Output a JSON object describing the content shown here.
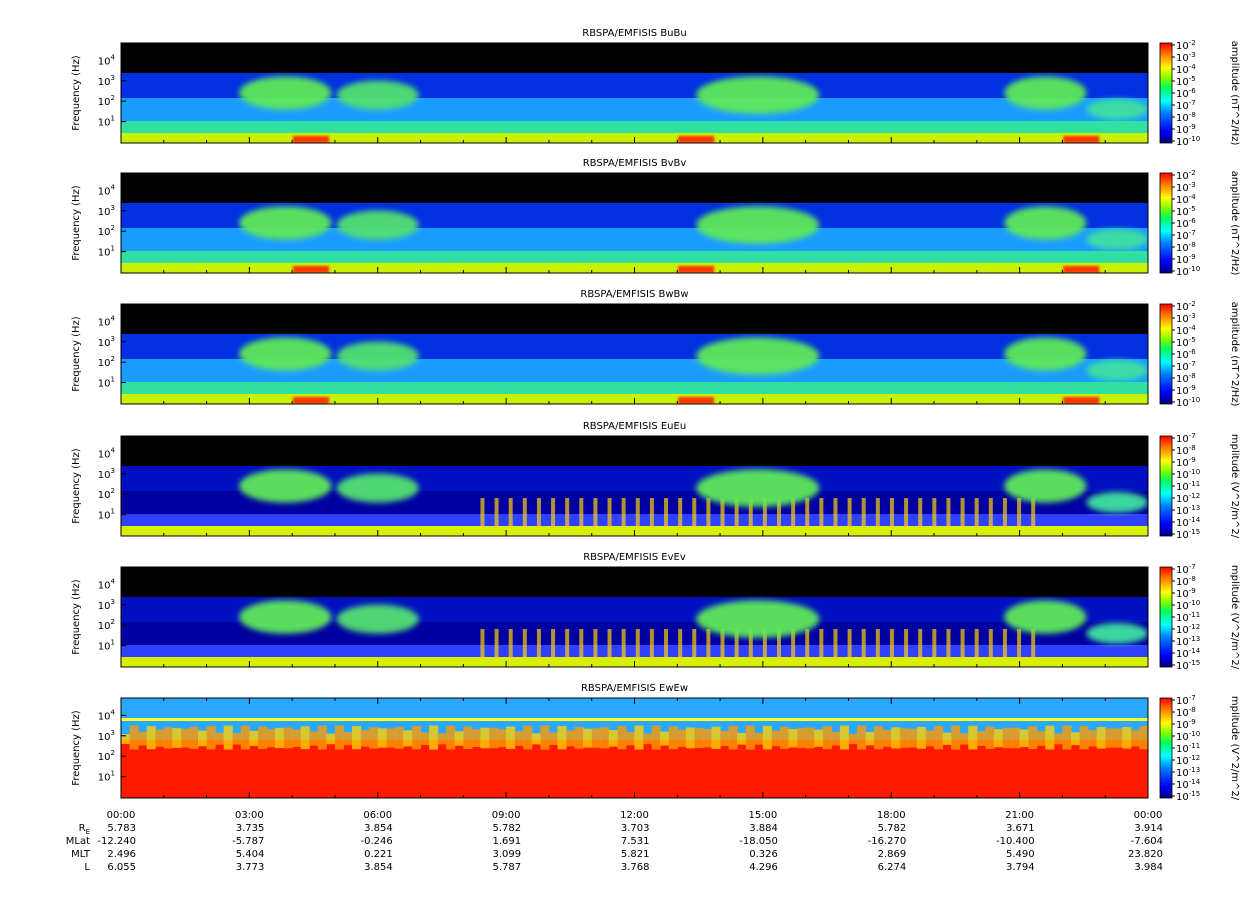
{
  "chart_data": {
    "type": "heatmap",
    "ephemeris_rows": [
      {
        "label": "R",
        "sub": "E",
        "values": [
          "5.783",
          "3.735",
          "3.854",
          "5.782",
          "3.703",
          "3.884",
          "5.782",
          "3.671",
          "3.914"
        ]
      },
      {
        "label": "MLat",
        "values": [
          "-12.240",
          "-5.787",
          "-0.246",
          "1.691",
          "7.531",
          "-18.050",
          "-16.270",
          "-10.400",
          "-7.604"
        ]
      },
      {
        "label": "MLT",
        "values": [
          "2.496",
          "5.404",
          "0.221",
          "3.099",
          "5.821",
          "0.326",
          "2.869",
          "5.490",
          "23.820"
        ]
      },
      {
        "label": "L",
        "values": [
          "6.055",
          "3.773",
          "3.854",
          "5.787",
          "3.768",
          "4.296",
          "6.274",
          "3.794",
          "3.984"
        ]
      }
    ],
    "x_ticks": [
      "00:00",
      "03:00",
      "06:00",
      "09:00",
      "12:00",
      "15:00",
      "18:00",
      "21:00",
      "00:00"
    ],
    "y_ticks": [
      "10",
      "10",
      "10",
      "10"
    ],
    "y_tick_exponents": [
      "4",
      "3",
      "2",
      "1"
    ],
    "panels": [
      {
        "title": "RBSPA/EMFISIS  BuBu",
        "ylabel": "Frequency (Hz)",
        "zlabel": "amplitude (nT^2/Hz)",
        "cbar_exponents": [
          "-2",
          "-3",
          "-4",
          "-5",
          "-6",
          "-7",
          "-8",
          "-9",
          "-10"
        ],
        "kind": "B"
      },
      {
        "title": "RBSPA/EMFISIS  BvBv",
        "ylabel": "Frequency (Hz)",
        "zlabel": "amplitude (nT^2/Hz)",
        "cbar_exponents": [
          "-2",
          "-3",
          "-4",
          "-5",
          "-6",
          "-7",
          "-8",
          "-9",
          "-10"
        ],
        "kind": "B"
      },
      {
        "title": "RBSPA/EMFISIS  BwBw",
        "ylabel": "Frequency (Hz)",
        "zlabel": "amplitude (nT^2/Hz)",
        "cbar_exponents": [
          "-2",
          "-3",
          "-4",
          "-5",
          "-6",
          "-7",
          "-8",
          "-9",
          "-10"
        ],
        "kind": "B3"
      },
      {
        "title": "RBSPA/EMFISIS  EuEu",
        "ylabel": "Frequency (Hz)",
        "zlabel": "mplitude (V^2/m^2/",
        "cbar_exponents": [
          "-7",
          "-8",
          "-9",
          "-10",
          "-11",
          "-12",
          "-13",
          "-14",
          "-15"
        ],
        "kind": "E"
      },
      {
        "title": "RBSPA/EMFISIS  EvEv",
        "ylabel": "Frequency (Hz)",
        "zlabel": "mplitude (V^2/m^2/",
        "cbar_exponents": [
          "-7",
          "-8",
          "-9",
          "-10",
          "-11",
          "-12",
          "-13",
          "-14",
          "-15"
        ],
        "kind": "E"
      },
      {
        "title": "RBSPA/EMFISIS  EwEw",
        "ylabel": "Frequency (Hz)",
        "zlabel": "mplitude (V^2/m^2/",
        "cbar_exponents": [
          "-7",
          "-8",
          "-9",
          "-10",
          "-11",
          "-12",
          "-13",
          "-14",
          "-15"
        ],
        "kind": "Ew"
      }
    ],
    "colormap": [
      "#00007f",
      "#0000ff",
      "#0080ff",
      "#00ffff",
      "#00ff80",
      "#80ff00",
      "#ffff00",
      "#ff8000",
      "#ff0000"
    ],
    "background_color": "#000000"
  }
}
